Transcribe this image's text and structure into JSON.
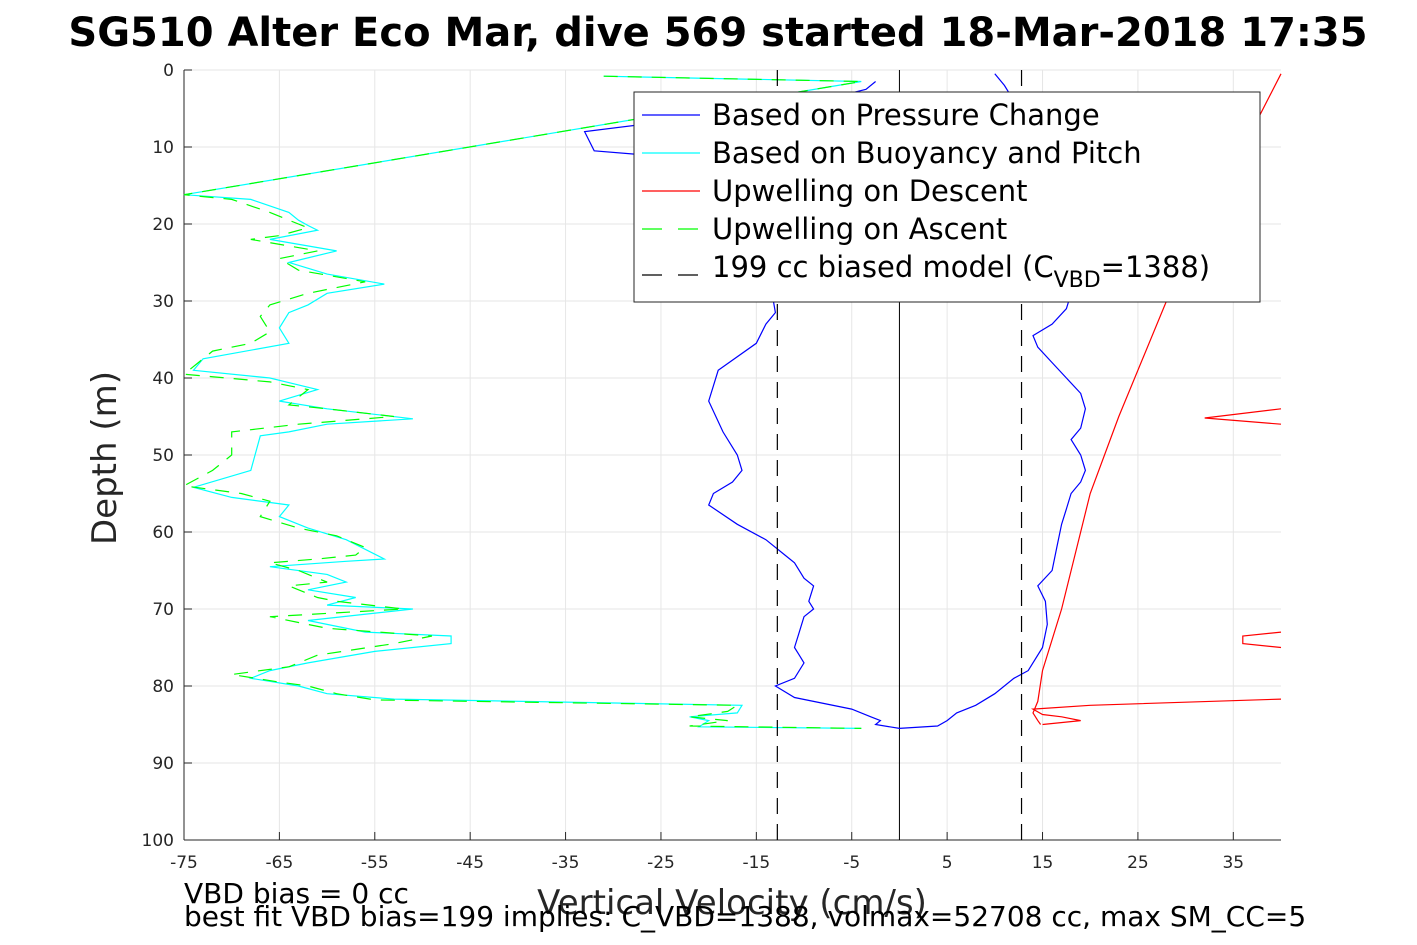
{
  "chart_data": {
    "type": "line",
    "title": "SG510 Alter Eco Mar, dive 569 started 18-Mar-2018 17:35",
    "xlabel": "Vertical Velocity (cm/s)",
    "ylabel": "Depth (m)",
    "xlim": [
      -75,
      40
    ],
    "ylim": [
      0,
      100
    ],
    "y_reversed": true,
    "grid": true,
    "x_ticks": [
      -75,
      -65,
      -55,
      -45,
      -35,
      -25,
      -15,
      -5,
      5,
      15,
      25,
      35
    ],
    "y_ticks": [
      0,
      10,
      20,
      30,
      40,
      50,
      60,
      70,
      80,
      90,
      100
    ],
    "legend": {
      "placement": "top-right",
      "entries": [
        {
          "label": "Based on Pressure Change",
          "color": "#0000ff",
          "style": "solid"
        },
        {
          "label": "Based on Buoyancy and Pitch",
          "color": "#00ffff",
          "style": "solid"
        },
        {
          "label": "Upwelling on Descent",
          "color": "#ff0000",
          "style": "solid"
        },
        {
          "label": "Upwelling on Ascent",
          "color": "#00ff00",
          "style": "dashed"
        },
        {
          "label": "199 cc biased model (C",
          "sub": "VBD",
          "suffix": "=1388)",
          "color": "#000000",
          "style": "dashed"
        }
      ]
    },
    "series": [
      {
        "name": "Based on Pressure Change",
        "color": "#0000ff",
        "style": "solid",
        "points": [
          [
            -2.5,
            1.5
          ],
          [
            -3.5,
            2.5
          ],
          [
            -10,
            4.5
          ],
          [
            -20,
            6
          ],
          [
            -33,
            8
          ],
          [
            -32,
            10.5
          ],
          [
            -22,
            11.5
          ],
          [
            -20,
            13
          ],
          [
            -18,
            15
          ],
          [
            -16,
            17
          ],
          [
            -15,
            19
          ],
          [
            -14,
            22
          ],
          [
            -13.5,
            25
          ],
          [
            -13.5,
            28
          ],
          [
            -13,
            31.5
          ],
          [
            -14,
            33
          ],
          [
            -15,
            35.5
          ],
          [
            -19,
            39
          ],
          [
            -20,
            43
          ],
          [
            -18.5,
            47
          ],
          [
            -17,
            50
          ],
          [
            -16.5,
            52
          ],
          [
            -17.5,
            53.5
          ],
          [
            -19.5,
            55
          ],
          [
            -20,
            56.5
          ],
          [
            -17,
            59
          ],
          [
            -14,
            61
          ],
          [
            -12,
            63
          ],
          [
            -11,
            64
          ],
          [
            -10,
            66
          ],
          [
            -9,
            67
          ],
          [
            -9.5,
            69
          ],
          [
            -9,
            70
          ],
          [
            -10,
            71
          ],
          [
            -10.5,
            73
          ],
          [
            -11,
            75
          ],
          [
            -10.5,
            76
          ],
          [
            -10,
            77
          ],
          [
            -11,
            79
          ],
          [
            -13,
            80
          ],
          [
            -11,
            81.5
          ],
          [
            -5,
            83
          ],
          [
            -3,
            84
          ],
          [
            -2,
            84.5
          ],
          [
            -2.5,
            85
          ],
          [
            0,
            85.5
          ],
          [
            4,
            85.2
          ],
          [
            5,
            84.5
          ],
          [
            6,
            83.5
          ],
          [
            8,
            82.5
          ],
          [
            10,
            81
          ],
          [
            12,
            79
          ],
          [
            13.5,
            78
          ],
          [
            15,
            75
          ],
          [
            15.5,
            72
          ],
          [
            15.3,
            69
          ],
          [
            14.5,
            67
          ],
          [
            16,
            65
          ],
          [
            16.5,
            62
          ],
          [
            17,
            59
          ],
          [
            17.5,
            57
          ],
          [
            18,
            55
          ],
          [
            19,
            53.5
          ],
          [
            19.5,
            52
          ],
          [
            19,
            50
          ],
          [
            18,
            48
          ],
          [
            19,
            46.5
          ],
          [
            19.5,
            44
          ],
          [
            19,
            42
          ],
          [
            17.5,
            40
          ],
          [
            16,
            38
          ],
          [
            14.5,
            36
          ],
          [
            14,
            34.5
          ],
          [
            16,
            33
          ],
          [
            17.5,
            31
          ],
          [
            18,
            29
          ],
          [
            17,
            27
          ],
          [
            16,
            24
          ],
          [
            17,
            21
          ],
          [
            18,
            19
          ],
          [
            16.5,
            16
          ],
          [
            15,
            13
          ],
          [
            14,
            10
          ],
          [
            13,
            7
          ],
          [
            12,
            4
          ],
          [
            11,
            2
          ],
          [
            10,
            0.5
          ]
        ]
      },
      {
        "name": "Based on Buoyancy and Pitch",
        "color": "#00ffff",
        "style": "solid",
        "points": [
          [
            -31,
            0.8
          ],
          [
            -4,
            1.5
          ],
          [
            -75,
            16.2
          ],
          [
            -68,
            16.8
          ],
          [
            -64,
            18.5
          ],
          [
            -63,
            19.5
          ],
          [
            -62,
            20.2
          ],
          [
            -61,
            20.8
          ],
          [
            -66,
            22
          ],
          [
            -59,
            23.5
          ],
          [
            -64,
            25
          ],
          [
            -60,
            26.5
          ],
          [
            -54,
            27.8
          ],
          [
            -60,
            29
          ],
          [
            -62,
            30.5
          ],
          [
            -64,
            31.5
          ],
          [
            -65,
            33.5
          ],
          [
            -64,
            35.5
          ],
          [
            -73,
            37.5
          ],
          [
            -74,
            39
          ],
          [
            -66,
            40
          ],
          [
            -61,
            41.5
          ],
          [
            -65,
            43
          ],
          [
            -60,
            44
          ],
          [
            -51,
            45.3
          ],
          [
            -60,
            46
          ],
          [
            -64,
            47
          ],
          [
            -67,
            47.5
          ],
          [
            -68,
            52
          ],
          [
            -74,
            54.2
          ],
          [
            -70,
            55.5
          ],
          [
            -64,
            56.5
          ],
          [
            -65,
            58
          ],
          [
            -62,
            59.5
          ],
          [
            -58,
            61
          ],
          [
            -54,
            63.5
          ],
          [
            -58,
            63.8
          ],
          [
            -66,
            64.5
          ],
          [
            -60,
            65.5
          ],
          [
            -58,
            66.5
          ],
          [
            -62,
            67.5
          ],
          [
            -57,
            68.5
          ],
          [
            -60,
            69.5
          ],
          [
            -51,
            70
          ],
          [
            -62,
            71.5
          ],
          [
            -56,
            73
          ],
          [
            -47,
            73.5
          ],
          [
            -47,
            74.5
          ],
          [
            -55,
            75.5
          ],
          [
            -62,
            77
          ],
          [
            -66,
            78
          ],
          [
            -68,
            79
          ],
          [
            -63,
            80
          ],
          [
            -60,
            81
          ],
          [
            -53,
            81.7
          ],
          [
            -16.5,
            82.5
          ],
          [
            -17,
            83.5
          ],
          [
            -22,
            84
          ],
          [
            -20,
            84.5
          ],
          [
            -21,
            85.3
          ],
          [
            -4,
            85.5
          ]
        ]
      },
      {
        "name": "Upwelling on Descent",
        "color": "#ff0000",
        "style": "solid",
        "points": [
          [
            40,
            0.5
          ],
          [
            34,
            15
          ],
          [
            28,
            30
          ],
          [
            23,
            45
          ],
          [
            20,
            55
          ],
          [
            17,
            70
          ],
          [
            15,
            78
          ],
          [
            14.5,
            82
          ],
          [
            14,
            83.5
          ],
          [
            14.5,
            84.5
          ],
          [
            14.8,
            85
          ]
        ],
        "extra_paths": [
          [
            [
              40,
              44
            ],
            [
              32,
              45.2
            ],
            [
              40,
              46
            ]
          ],
          [
            [
              40,
              73
            ],
            [
              36,
              73.5
            ],
            [
              36,
              74.5
            ],
            [
              40,
              75
            ]
          ],
          [
            [
              40,
              81.7
            ],
            [
              20,
              82.5
            ],
            [
              14,
              83
            ],
            [
              15,
              83.7
            ],
            [
              17,
              84
            ],
            [
              19,
              84.5
            ],
            [
              15,
              85
            ]
          ]
        ]
      },
      {
        "name": "Upwelling on Ascent",
        "color": "#00ff00",
        "style": "dashed",
        "points": [
          [
            -31,
            0.8
          ],
          [
            -4,
            1.5
          ],
          [
            -75,
            16.2
          ],
          [
            -70,
            16.8
          ],
          [
            -66,
            18.5
          ],
          [
            -64,
            19.5
          ],
          [
            -62,
            20.5
          ],
          [
            -65,
            21.5
          ],
          [
            -68,
            22
          ],
          [
            -61,
            23.5
          ],
          [
            -65,
            24.5
          ],
          [
            -63,
            26
          ],
          [
            -56,
            27.5
          ],
          [
            -62,
            29
          ],
          [
            -66,
            30.5
          ],
          [
            -67,
            32
          ],
          [
            -66,
            34
          ],
          [
            -68,
            35.5
          ],
          [
            -72,
            36.5
          ],
          [
            -75,
            39.5
          ],
          [
            -66,
            40.5
          ],
          [
            -62,
            41.5
          ],
          [
            -64,
            43.5
          ],
          [
            -60,
            44
          ],
          [
            -53,
            45
          ],
          [
            -63,
            46
          ],
          [
            -70,
            47
          ],
          [
            -70,
            50
          ],
          [
            -72,
            52
          ],
          [
            -75,
            54
          ],
          [
            -69,
            55
          ],
          [
            -66,
            56
          ],
          [
            -67,
            58
          ],
          [
            -63,
            59.5
          ],
          [
            -59,
            60.5
          ],
          [
            -56,
            62
          ],
          [
            -57,
            63
          ],
          [
            -61,
            63.5
          ],
          [
            -66,
            64
          ],
          [
            -63,
            65
          ],
          [
            -60,
            66.5
          ],
          [
            -64,
            67
          ],
          [
            -61,
            68.5
          ],
          [
            -59,
            69
          ],
          [
            -52,
            70
          ],
          [
            -66,
            71
          ],
          [
            -60,
            72.5
          ],
          [
            -49,
            73.5
          ],
          [
            -53,
            74.5
          ],
          [
            -61,
            76
          ],
          [
            -64,
            77.5
          ],
          [
            -70,
            78.5
          ],
          [
            -65,
            79.5
          ],
          [
            -62,
            80
          ],
          [
            -59,
            81
          ],
          [
            -55,
            81.8
          ],
          [
            -17,
            82.5
          ],
          [
            -18,
            83.3
          ],
          [
            -22,
            84
          ],
          [
            -18,
            84.5
          ],
          [
            -22,
            85.2
          ],
          [
            -4,
            85.5
          ]
        ]
      },
      {
        "name": "199 cc biased model",
        "color": "#000000",
        "style": "dashed",
        "vertical_lines": [
          -12.8,
          12.8
        ]
      }
    ],
    "reference_line_x": 0
  },
  "footer": {
    "line1": "VBD bias = 0 cc",
    "line2": "best fit VBD bias=199 implies: C_VBD=1388, volmax=52708 cc, max SM_CC=5"
  }
}
